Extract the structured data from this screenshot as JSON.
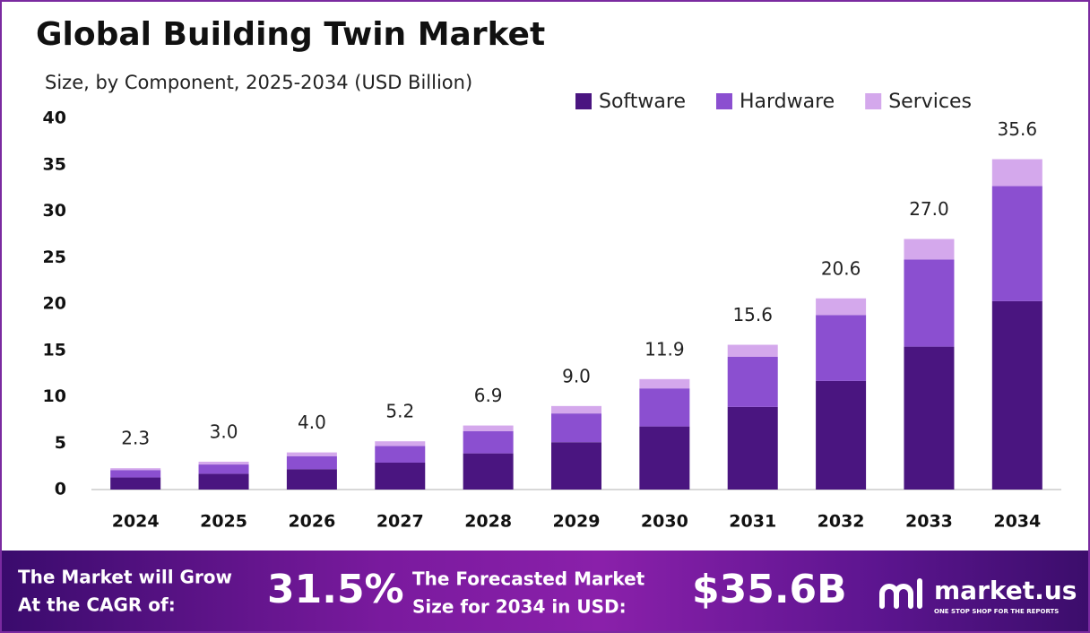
{
  "chart_data": {
    "type": "stacked_bar",
    "title": "Global Building Twin Market",
    "subtitle": "Size, by Component, 2025-2034 (USD Billion)",
    "categories": [
      "2024",
      "2025",
      "2026",
      "2027",
      "2028",
      "2029",
      "2030",
      "2031",
      "2032",
      "2033",
      "2034"
    ],
    "series": [
      {
        "name": "Software",
        "color": "#4a1580",
        "values": [
          1.3,
          1.7,
          2.2,
          2.9,
          3.9,
          5.1,
          6.8,
          8.9,
          11.7,
          15.4,
          20.3
        ]
      },
      {
        "name": "Hardware",
        "color": "#8b4fd0",
        "values": [
          0.8,
          1.0,
          1.4,
          1.8,
          2.4,
          3.1,
          4.1,
          5.4,
          7.1,
          9.4,
          12.4
        ]
      },
      {
        "name": "Services",
        "color": "#d4a8ec",
        "values": [
          0.2,
          0.3,
          0.4,
          0.5,
          0.6,
          0.8,
          1.0,
          1.3,
          1.8,
          2.2,
          2.9
        ]
      }
    ],
    "totals": {
      "values": [
        2.3,
        3,
        4,
        5.2,
        6.9,
        9,
        11.9,
        15.6,
        20.6,
        27,
        35.6
      ],
      "value_labels": [
        "2.3",
        "3.0",
        "4.0",
        "5.2",
        "6.9",
        "9.0",
        "11.9",
        "15.6",
        "20.6",
        "27.0",
        "35.6"
      ]
    },
    "ylim": [
      0,
      40
    ],
    "yticks": [
      0,
      5,
      10,
      15,
      20,
      25,
      30,
      35,
      40
    ],
    "grid": false,
    "legend": "top-right"
  },
  "footer": {
    "cagr_label": [
      "The Market will Grow",
      "At the CAGR of:"
    ],
    "cagr": "31.5%",
    "forecast_label": [
      "The Forecasted Market",
      "Size for 2034 in USD:"
    ],
    "forecast": "$35.6B",
    "brand": "market.us",
    "tagline": "ONE STOP SHOP FOR THE REPORTS"
  }
}
